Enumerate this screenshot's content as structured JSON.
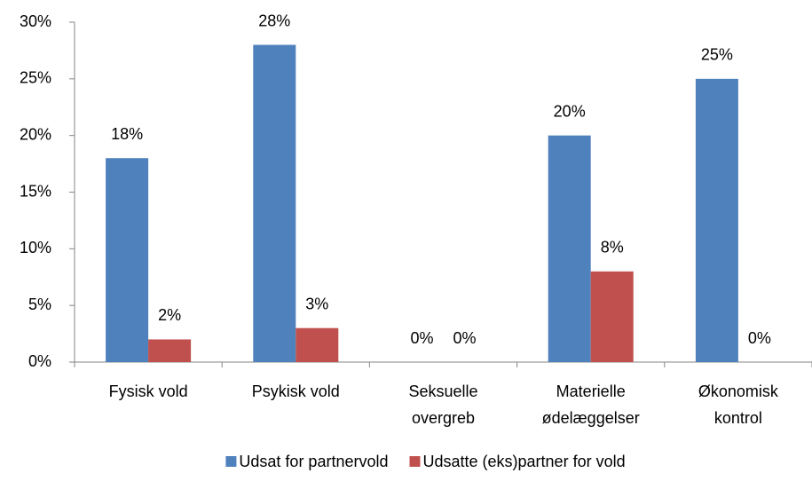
{
  "chart_data": {
    "type": "bar",
    "categories": [
      "Fysisk vold",
      "Psykisk vold",
      "Seksuelle\novergreb",
      "Materielle\nødelæggelser",
      "Økonomisk\nkontrol"
    ],
    "series": [
      {
        "name": "Udsat for partnervold",
        "color": "#4f81bd",
        "values": [
          18,
          28,
          0,
          20,
          25
        ],
        "value_labels": [
          "18%",
          "28%",
          "0%",
          "20%",
          "25%"
        ]
      },
      {
        "name": "Udsatte (eks)partner for vold",
        "color": "#c0504d",
        "values": [
          2,
          3,
          0,
          8,
          0
        ],
        "value_labels": [
          "2%",
          "3%",
          "0%",
          "8%",
          "0%"
        ]
      }
    ],
    "ylim": [
      0,
      30
    ],
    "yticks": [
      {
        "value": 0,
        "label": "0%"
      },
      {
        "value": 5,
        "label": "5%"
      },
      {
        "value": 10,
        "label": "10%"
      },
      {
        "value": 15,
        "label": "15%"
      },
      {
        "value": 20,
        "label": "20%"
      },
      {
        "value": 25,
        "label": "25%"
      },
      {
        "value": 30,
        "label": "30%"
      }
    ],
    "grid": false,
    "legend": "bottom"
  }
}
